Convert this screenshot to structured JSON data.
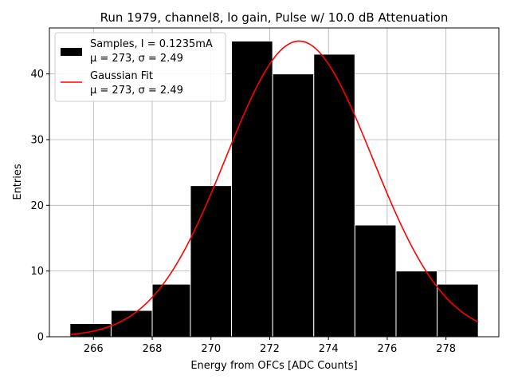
{
  "chart_data": {
    "type": "bar",
    "title": "Run 1979, channel8, lo gain, Pulse w/ 10.0 dB Attenuation",
    "xlabel": "Energy from OFCs [ADC Counts]",
    "ylabel": "Entries",
    "xlim": [
      264.5,
      279.8
    ],
    "ylim": [
      0,
      47
    ],
    "xticks": [
      266,
      268,
      270,
      272,
      274,
      276,
      278
    ],
    "yticks": [
      0,
      10,
      20,
      30,
      40
    ],
    "grid": true,
    "legend_position": "top-left",
    "histogram": {
      "name": "Samples, I = 0.1235mA",
      "stats": "μ = 273, σ = 2.49",
      "bin_edges": [
        265.2,
        266.6,
        268.0,
        269.3,
        270.7,
        272.1,
        273.5,
        274.9,
        276.3,
        277.7,
        279.1
      ],
      "counts": [
        2,
        4,
        8,
        23,
        45,
        40,
        43,
        17,
        10,
        8
      ],
      "color": "#000000"
    },
    "fit": {
      "name": "Gaussian Fit",
      "stats": "μ = 273, σ = 2.49",
      "mu": 273.0,
      "sigma": 2.49,
      "amplitude": 45,
      "x_range": [
        265.2,
        279.1
      ],
      "color": "#ff0000"
    }
  }
}
